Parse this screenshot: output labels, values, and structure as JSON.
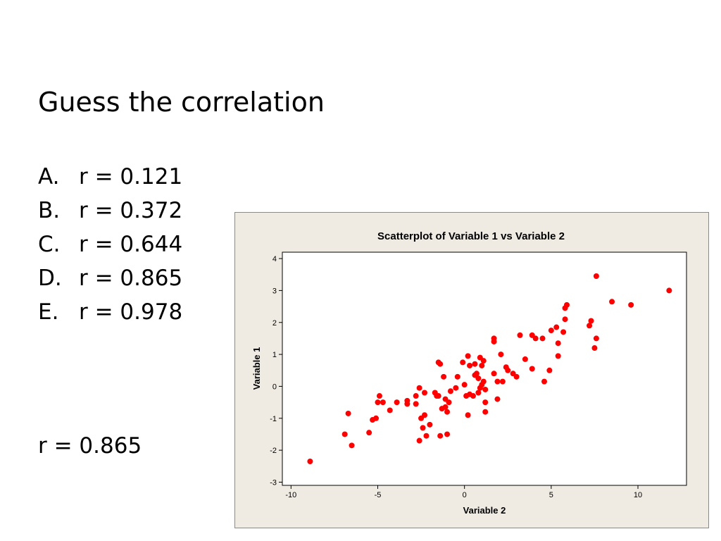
{
  "slide": {
    "title": "Guess the correlation",
    "options": [
      {
        "letter": "A.",
        "text": "r = 0.121"
      },
      {
        "letter": "B.",
        "text": "r = 0.372"
      },
      {
        "letter": "C.",
        "text": "r = 0.644"
      },
      {
        "letter": "D.",
        "text": "r = 0.865"
      },
      {
        "letter": "E.",
        "text": "r = 0.978"
      }
    ],
    "answer": "r = 0.865"
  },
  "chart_data": {
    "type": "scatter",
    "title": "Scatterplot of Variable 1 vs Variable 2",
    "xlabel": "Variable 2",
    "ylabel": "Variable 1",
    "xlim": [
      -10.5,
      12.8
    ],
    "ylim": [
      -3.1,
      4.2
    ],
    "xticks": [
      -10,
      -5,
      0,
      5,
      10
    ],
    "yticks": [
      -3,
      -2,
      -1,
      0,
      1,
      2,
      3,
      4
    ],
    "marker_color": "#ff0000",
    "background_color": "#efebe3",
    "points": [
      [
        -8.9,
        -2.35
      ],
      [
        -6.9,
        -1.5
      ],
      [
        -6.7,
        -0.85
      ],
      [
        -6.5,
        -1.85
      ],
      [
        -5.5,
        -1.45
      ],
      [
        -5.3,
        -1.05
      ],
      [
        -5.1,
        -1.0
      ],
      [
        -5.0,
        -0.5
      ],
      [
        -4.9,
        -0.3
      ],
      [
        -4.7,
        -0.5
      ],
      [
        -4.3,
        -0.75
      ],
      [
        -3.9,
        -0.5
      ],
      [
        -3.3,
        -0.55
      ],
      [
        -3.3,
        -0.45
      ],
      [
        -2.8,
        -0.3
      ],
      [
        -2.8,
        -0.55
      ],
      [
        -2.6,
        -1.7
      ],
      [
        -2.6,
        -0.05
      ],
      [
        -2.5,
        -1.0
      ],
      [
        -2.4,
        -1.3
      ],
      [
        -2.3,
        -0.2
      ],
      [
        -2.3,
        -0.9
      ],
      [
        -2.2,
        -1.55
      ],
      [
        -2.0,
        -1.2
      ],
      [
        -1.7,
        -0.2
      ],
      [
        -1.6,
        -0.3
      ],
      [
        -1.5,
        -0.3
      ],
      [
        -1.5,
        0.75
      ],
      [
        -1.4,
        -1.55
      ],
      [
        -1.4,
        0.7
      ],
      [
        -1.3,
        -0.7
      ],
      [
        -1.2,
        0.3
      ],
      [
        -1.1,
        -0.65
      ],
      [
        -1.1,
        -0.4
      ],
      [
        -1.0,
        -0.8
      ],
      [
        -1.0,
        -1.5
      ],
      [
        -0.9,
        -0.5
      ],
      [
        -0.8,
        -0.15
      ],
      [
        -0.5,
        -0.05
      ],
      [
        -0.4,
        0.3
      ],
      [
        -0.1,
        0.75
      ],
      [
        0.0,
        0.05
      ],
      [
        0.1,
        -0.3
      ],
      [
        0.2,
        -0.9
      ],
      [
        0.2,
        0.95
      ],
      [
        0.3,
        0.65
      ],
      [
        0.3,
        -0.25
      ],
      [
        0.5,
        -0.3
      ],
      [
        0.6,
        0.7
      ],
      [
        0.6,
        0.35
      ],
      [
        0.7,
        0.4
      ],
      [
        0.8,
        0.25
      ],
      [
        0.8,
        -0.2
      ],
      [
        0.9,
        0.9
      ],
      [
        0.9,
        -0.05
      ],
      [
        1.0,
        0.05
      ],
      [
        1.0,
        0.65
      ],
      [
        1.1,
        0.8
      ],
      [
        1.1,
        0.15
      ],
      [
        1.2,
        -0.5
      ],
      [
        1.2,
        -0.8
      ],
      [
        1.2,
        -0.1
      ],
      [
        1.7,
        1.5
      ],
      [
        1.7,
        1.4
      ],
      [
        1.7,
        0.4
      ],
      [
        1.9,
        -0.4
      ],
      [
        1.9,
        0.15
      ],
      [
        2.1,
        1.0
      ],
      [
        2.2,
        0.15
      ],
      [
        2.4,
        0.6
      ],
      [
        2.5,
        0.5
      ],
      [
        2.8,
        0.4
      ],
      [
        3.0,
        0.3
      ],
      [
        3.2,
        1.6
      ],
      [
        3.5,
        0.85
      ],
      [
        3.9,
        1.6
      ],
      [
        3.9,
        0.55
      ],
      [
        4.1,
        1.5
      ],
      [
        4.5,
        1.5
      ],
      [
        4.6,
        0.15
      ],
      [
        4.9,
        0.5
      ],
      [
        5.0,
        1.75
      ],
      [
        5.3,
        1.85
      ],
      [
        5.4,
        1.35
      ],
      [
        5.4,
        0.95
      ],
      [
        5.7,
        1.7
      ],
      [
        5.8,
        2.1
      ],
      [
        5.8,
        2.45
      ],
      [
        5.9,
        2.55
      ],
      [
        7.2,
        1.9
      ],
      [
        7.3,
        2.05
      ],
      [
        7.5,
        1.2
      ],
      [
        7.6,
        3.45
      ],
      [
        7.6,
        1.5
      ],
      [
        8.5,
        2.65
      ],
      [
        9.6,
        2.55
      ],
      [
        11.8,
        3.0
      ]
    ]
  }
}
